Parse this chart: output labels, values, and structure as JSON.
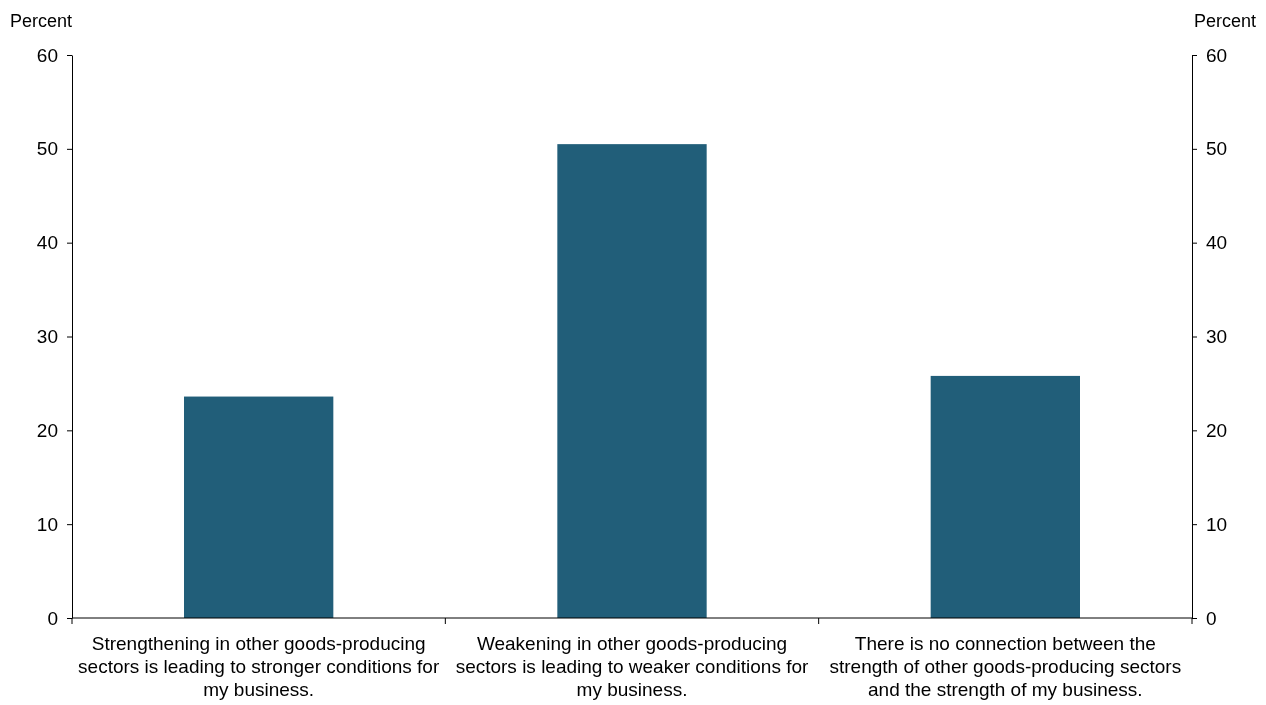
{
  "chart_data": {
    "type": "bar",
    "ylabel": "Percent",
    "y2label": "Percent",
    "categories": [
      "Strengthening in other goods-producing sectors is leading to stronger conditions for my business.",
      "Weakening in other goods-producing sectors is leading to weaker conditions for my business.",
      "There is no connection between the strength of other goods-producing sectors and the strength of my business."
    ],
    "values": [
      23.6,
      50.5,
      25.8
    ],
    "color": "#215e79",
    "ylim": [
      0,
      60
    ],
    "yticks": [
      0,
      10,
      20,
      30,
      40,
      50,
      60
    ],
    "y2lim": [
      0,
      60
    ],
    "y2ticks": [
      0,
      10,
      20,
      30,
      40,
      50,
      60
    ]
  }
}
